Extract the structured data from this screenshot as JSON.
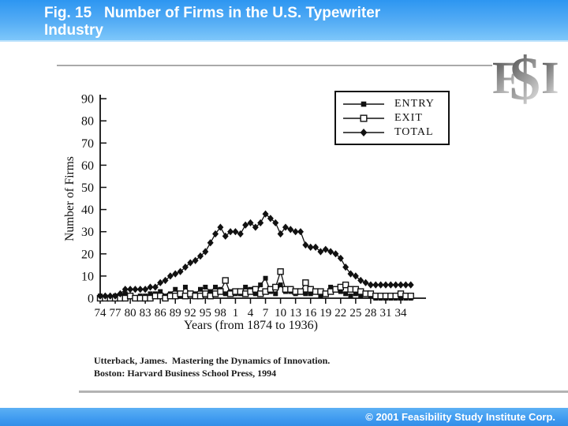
{
  "header": {
    "title_line1": "Fig. 15   Number of Firms in the U.S. Typewriter",
    "title_line2": "Industry"
  },
  "logo": {
    "text": "F$I"
  },
  "citation": {
    "line1": "Utterback, James.  Mastering the Dynamics of Innovation.",
    "line2": "Boston: Harvard Business School Press, 1994"
  },
  "footer": {
    "copyright": "© 2001 Feasibility Study Institute Corp."
  },
  "colors": {
    "ink": "#111111",
    "header_blue_top": "#2d96f1",
    "header_blue_bottom": "#7ec7fa",
    "footer_blue": "#3f9bf0",
    "rule_gray": "#a9a9a9",
    "logo_gray_dark": "#3a3a3a",
    "logo_gray_light": "#d8d8d8"
  },
  "chart_data": {
    "type": "line",
    "title": "",
    "xlabel": "Years (from 1874 to 1936)",
    "ylabel": "Number of Firms",
    "x_range": [
      1874,
      1936
    ],
    "x_tick_step_years": 3,
    "x_ticks": [
      "74",
      "77",
      "80",
      "83",
      "86",
      "89",
      "92",
      "95",
      "98",
      "1",
      "4",
      "7",
      "10",
      "13",
      "16",
      "19",
      "22",
      "25",
      "28",
      "31",
      "34"
    ],
    "ylim": [
      0,
      90
    ],
    "y_ticks": [
      0,
      10,
      20,
      30,
      40,
      50,
      60,
      70,
      80,
      90
    ],
    "grid": false,
    "legend_position": "top-right",
    "series": [
      {
        "name": "ENTRY",
        "marker": "filled-square",
        "values": [
          1,
          0,
          0,
          1,
          1,
          2,
          1,
          0,
          1,
          1,
          2,
          2,
          3,
          1,
          2,
          4,
          1,
          5,
          2,
          2,
          4,
          5,
          3,
          5,
          4,
          2,
          3,
          2,
          2,
          5,
          4,
          2,
          6,
          9,
          3,
          2,
          6,
          3,
          3,
          2,
          3,
          2,
          2,
          3,
          1,
          2,
          5,
          4,
          3,
          2,
          1,
          2,
          1,
          2,
          1,
          0,
          0,
          0,
          0,
          0,
          0,
          0,
          0
        ]
      },
      {
        "name": "EXIT",
        "marker": "open-square",
        "values": [
          0,
          0,
          0,
          0,
          0,
          0,
          1,
          0,
          0,
          0,
          0,
          1,
          1,
          0,
          1,
          1,
          2,
          1,
          2,
          1,
          1,
          2,
          1,
          2,
          3,
          8,
          2,
          3,
          3,
          2,
          3,
          4,
          2,
          3,
          4,
          5,
          12,
          4,
          4,
          3,
          3,
          7,
          4,
          3,
          3,
          2,
          3,
          4,
          5,
          6,
          4,
          4,
          3,
          2,
          2,
          1,
          1,
          1,
          1,
          1,
          2,
          1,
          1
        ]
      },
      {
        "name": "TOTAL",
        "marker": "filled-diamond",
        "values": [
          1,
          1,
          1,
          1,
          2,
          4,
          4,
          4,
          4,
          4,
          5,
          5,
          7,
          8,
          10,
          11,
          12,
          14,
          16,
          17,
          19,
          21,
          25,
          29,
          32,
          28,
          30,
          30,
          29,
          33,
          34,
          32,
          34,
          38,
          36,
          34,
          29,
          32,
          31,
          30,
          30,
          24,
          23,
          23,
          21,
          22,
          21,
          20,
          18,
          14,
          11,
          10,
          8,
          7,
          6,
          6,
          6,
          6,
          6,
          6,
          6,
          6,
          6
        ]
      }
    ]
  }
}
